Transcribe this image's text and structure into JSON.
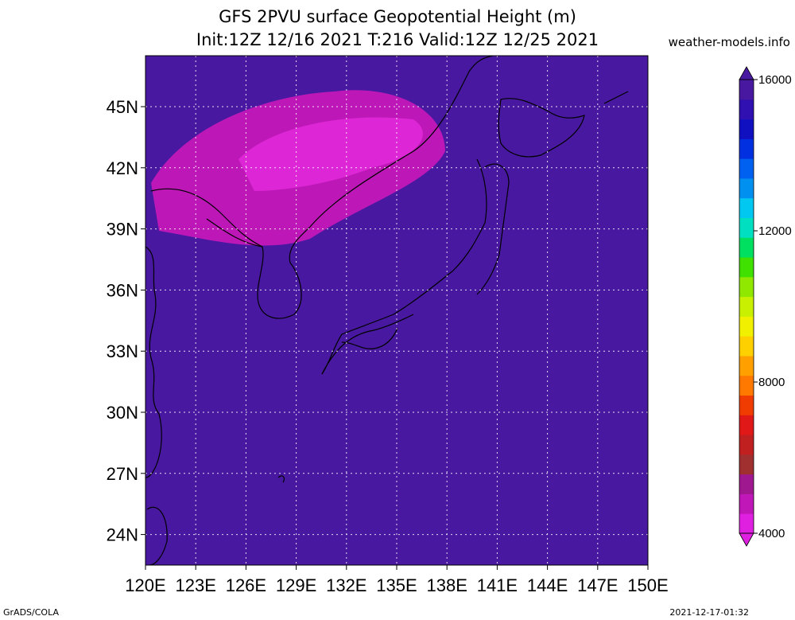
{
  "title_line1": "GFS 2PVU surface Geopotential Height (m)",
  "title_line2": "Init:12Z 12/16 2021 T:216 Valid:12Z 12/25 2021",
  "source": "weather-models.info",
  "footer_left": "GrADS/COLA",
  "footer_right": "2021-12-17-01:32",
  "map": {
    "lon_range": [
      120,
      150
    ],
    "lat_range": [
      22.5,
      47.5
    ],
    "lon_ticks": [
      "120E",
      "123E",
      "126E",
      "129E",
      "132E",
      "135E",
      "138E",
      "141E",
      "144E",
      "147E",
      "150E"
    ],
    "lon_values": [
      120,
      123,
      126,
      129,
      132,
      135,
      138,
      141,
      144,
      147,
      150
    ],
    "lat_ticks": [
      "45N",
      "42N",
      "39N",
      "36N",
      "33N",
      "30N",
      "27N",
      "24N"
    ],
    "lat_values": [
      45,
      42,
      39,
      36,
      33,
      30,
      27,
      24
    ],
    "gridlines": true
  },
  "colorbar": {
    "min": 4000,
    "max": 16000,
    "labels": [
      "16000",
      "12000",
      "8000",
      "4000"
    ],
    "label_values": [
      16000,
      12000,
      8000,
      4000
    ],
    "colors": [
      "#e020e0",
      "#c018b8",
      "#a01890",
      "#a03030",
      "#c02020",
      "#e01818",
      "#f03c00",
      "#ff7800",
      "#ffa000",
      "#ffd000",
      "#f0f000",
      "#c8f000",
      "#90e800",
      "#40e000",
      "#00e060",
      "#00e0c0",
      "#00c8f0",
      "#0090f0",
      "#0060f0",
      "#0030e0",
      "#1010c0",
      "#3010b0",
      "#4818a0"
    ],
    "field_levels": [
      5000,
      5500,
      6000,
      6500,
      7000,
      7500,
      8000,
      8500,
      9000,
      9500,
      10000,
      10500,
      11000,
      11500,
      12000,
      12500,
      13000,
      13500,
      14000,
      14500,
      15000,
      15500
    ]
  }
}
